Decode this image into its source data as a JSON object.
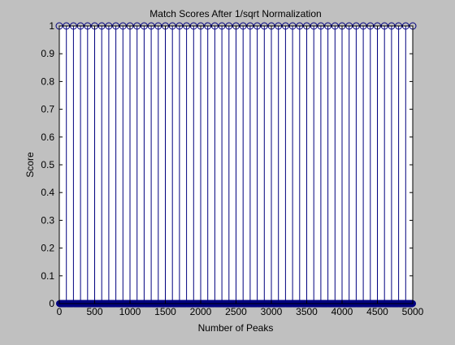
{
  "chart_data": {
    "type": "stem",
    "title": "Match Scores After 1/sqrt Normalization",
    "xlabel": "Number of Peaks",
    "ylabel": "Score",
    "xlim": [
      0,
      5000
    ],
    "ylim": [
      0,
      1
    ],
    "x_ticks": [
      "0",
      "500",
      "1000",
      "1500",
      "2000",
      "2500",
      "3000",
      "3500",
      "4000",
      "4500",
      "5000"
    ],
    "y_ticks": [
      "0",
      "0.1",
      "0.2",
      "0.3",
      "0.4",
      "0.5",
      "0.6",
      "0.7",
      "0.8",
      "0.9",
      "1"
    ],
    "grid": false,
    "series": [
      {
        "color": "#00007f",
        "x_start": 0,
        "x_end": 5000,
        "x_step": 1,
        "value_at_multiples_of_100": 1,
        "value_elsewhere": 0,
        "marker": "circle"
      }
    ]
  }
}
